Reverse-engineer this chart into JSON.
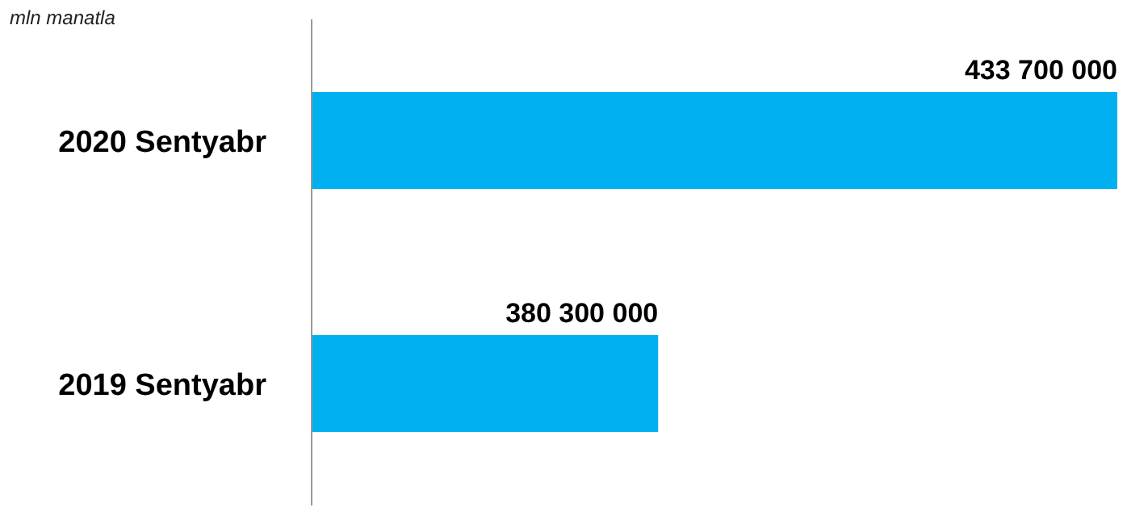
{
  "chart_data": {
    "type": "bar",
    "orientation": "horizontal",
    "categories": [
      "2020 Sentyabr",
      "2019 Sentyabr"
    ],
    "series": [
      {
        "color": "#00b0f0",
        "values": [
          433700000,
          380300000
        ]
      }
    ],
    "data_labels": true,
    "xlim": [
      340000000,
      433700000
    ],
    "tick_labels": "y",
    "grid": false,
    "legend": false,
    "annotations": [
      "mln manatla"
    ]
  }
}
